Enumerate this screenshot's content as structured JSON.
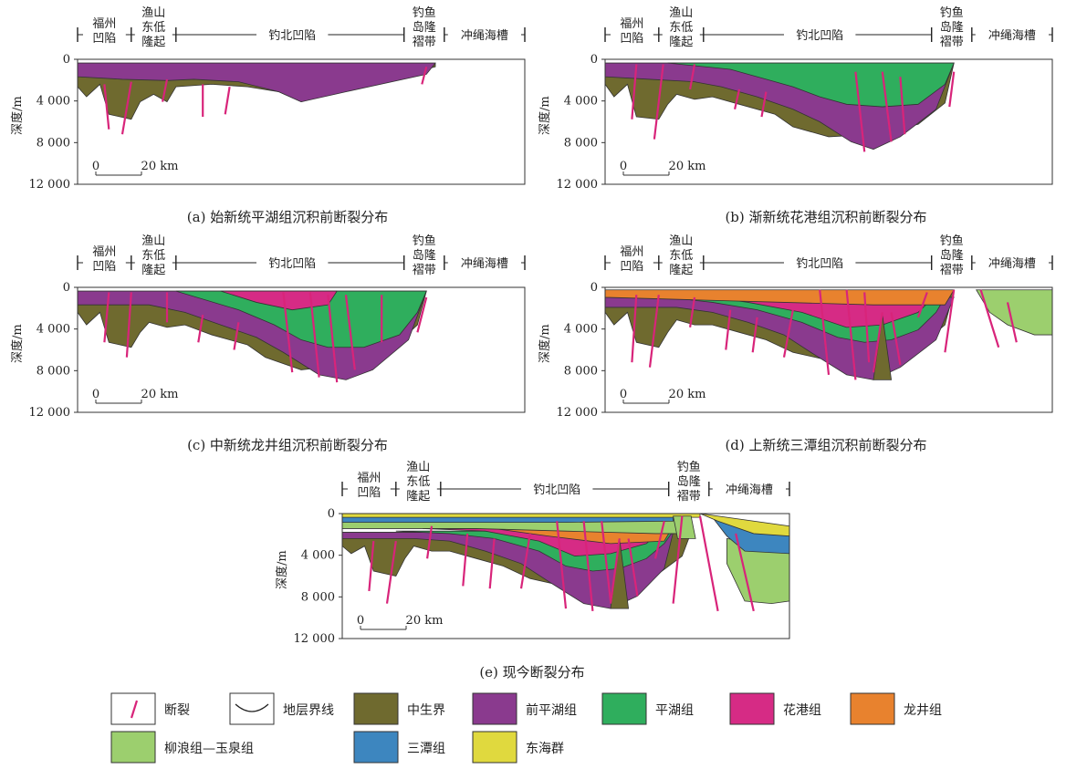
{
  "colors": {
    "fault": "#d8247a",
    "mesozoic": "#6f6a2f",
    "qianpinghu": "#8a3a8e",
    "pinghu": "#2fae5d",
    "huagang": "#d62b85",
    "longjing": "#e8822e",
    "liulang_yuquan": "#9ccf6e",
    "santan": "#3d86bf",
    "donghai": "#e0d93e"
  },
  "axis": {
    "ylabel": "深度/m",
    "ticks": [
      "0",
      "4 000",
      "8 000",
      "12 000"
    ]
  },
  "scale_bar": {
    "zero": "0",
    "label": "20 km"
  },
  "regions": {
    "fuzhou": [
      "福州",
      "凹陷"
    ],
    "yushan": [
      "渔山",
      "东低",
      "隆起"
    ],
    "diaobei": "钓北凹陷",
    "diaoyu": [
      "钓鱼",
      "岛隆",
      "褶带"
    ],
    "okinawa": "冲绳海槽"
  },
  "panels": [
    {
      "id": "a",
      "caption": "(a) 始新统平湖组沉积前断裂分布"
    },
    {
      "id": "b",
      "caption": "(b) 渐新统花港组沉积前断裂分布"
    },
    {
      "id": "c",
      "caption": "(c) 中新统龙井组沉积前断裂分布"
    },
    {
      "id": "d",
      "caption": "(d) 上新统三潭组沉积前断裂分布"
    },
    {
      "id": "e",
      "caption": "(e) 现今断裂分布"
    }
  ],
  "legend": [
    {
      "key": "fault",
      "label": "断裂",
      "swatch": "fault"
    },
    {
      "key": "boundary",
      "label": "地层界线",
      "swatch": "boundary"
    },
    {
      "key": "mesozoic",
      "label": "中生界",
      "swatch": "mesozoic"
    },
    {
      "key": "qianpinghu",
      "label": "前平湖组",
      "swatch": "qianpinghu"
    },
    {
      "key": "pinghu",
      "label": "平湖组",
      "swatch": "pinghu"
    },
    {
      "key": "huagang",
      "label": "花港组",
      "swatch": "huagang"
    },
    {
      "key": "longjing",
      "label": "龙井组",
      "swatch": "longjing"
    },
    {
      "key": "liulang_yuquan",
      "label": "柳浪组—玉泉组",
      "swatch": "liulang_yuquan"
    },
    {
      "key": "santan",
      "label": "三潭组",
      "swatch": "santan"
    },
    {
      "key": "donghai",
      "label": "东海群",
      "swatch": "donghai"
    }
  ]
}
